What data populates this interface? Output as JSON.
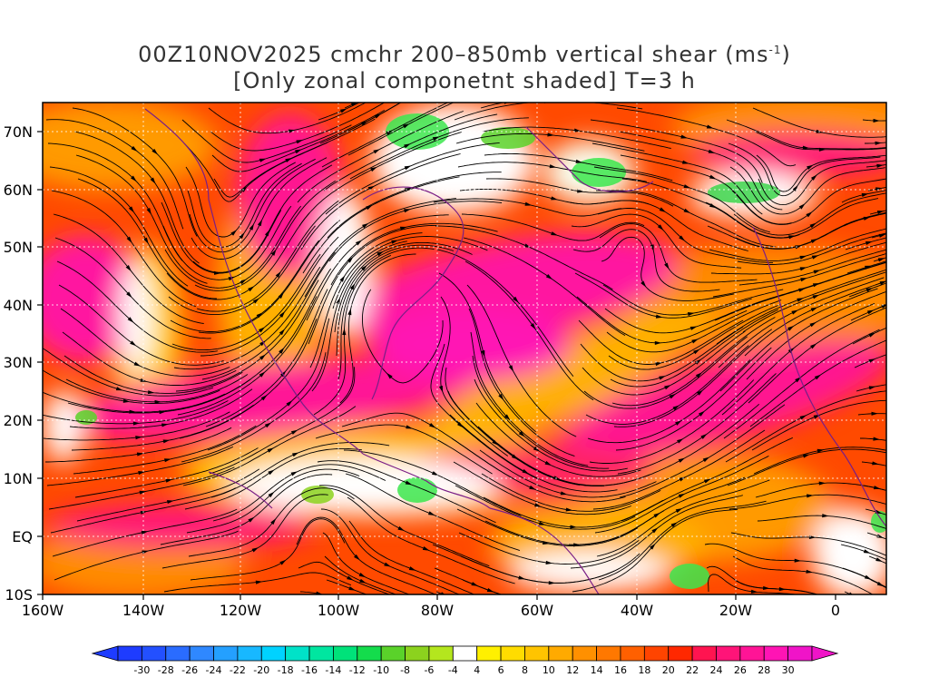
{
  "title": {
    "line1_text": "00Z10NOV2025 cmchr 200–850mb vertical shear (ms",
    "line1_sup": "-1",
    "line1_end": ")",
    "line2": "[Only zonal componetnt shaded] T=3 h"
  },
  "map": {
    "lon_labels": [
      "160W",
      "140W",
      "120W",
      "100W",
      "80W",
      "60W",
      "40W",
      "20W",
      "0"
    ],
    "lat_labels": [
      "70N",
      "60N",
      "50N",
      "40N",
      "30N",
      "20N",
      "10N",
      "EQ",
      "10S"
    ],
    "shading": "zonal wind shear component",
    "overlay": "streamlines"
  },
  "colorbar": {
    "labels": [
      "-30",
      "-28",
      "-26",
      "-24",
      "-22",
      "-20",
      "-18",
      "-16",
      "-14",
      "-12",
      "-10",
      "-8",
      "-6",
      "-4",
      "4",
      "6",
      "8",
      "10",
      "12",
      "14",
      "16",
      "18",
      "20",
      "22",
      "24",
      "26",
      "28",
      "30"
    ],
    "colors": [
      "#1e3cff",
      "#2350ff",
      "#2a6cff",
      "#2f88ff",
      "#24a0ff",
      "#18b8ff",
      "#00d2ff",
      "#00e2c8",
      "#00e6a0",
      "#00e27a",
      "#14dc4c",
      "#5ad22a",
      "#8cd21e",
      "#b4e61e",
      "#ffffff",
      "#fff000",
      "#ffdc00",
      "#ffc400",
      "#ffaa00",
      "#ff9000",
      "#ff7800",
      "#ff6000",
      "#ff4400",
      "#ff2800",
      "#ff1450",
      "#ff1478",
      "#ff1496",
      "#ff14b4",
      "#f014c8"
    ]
  }
}
